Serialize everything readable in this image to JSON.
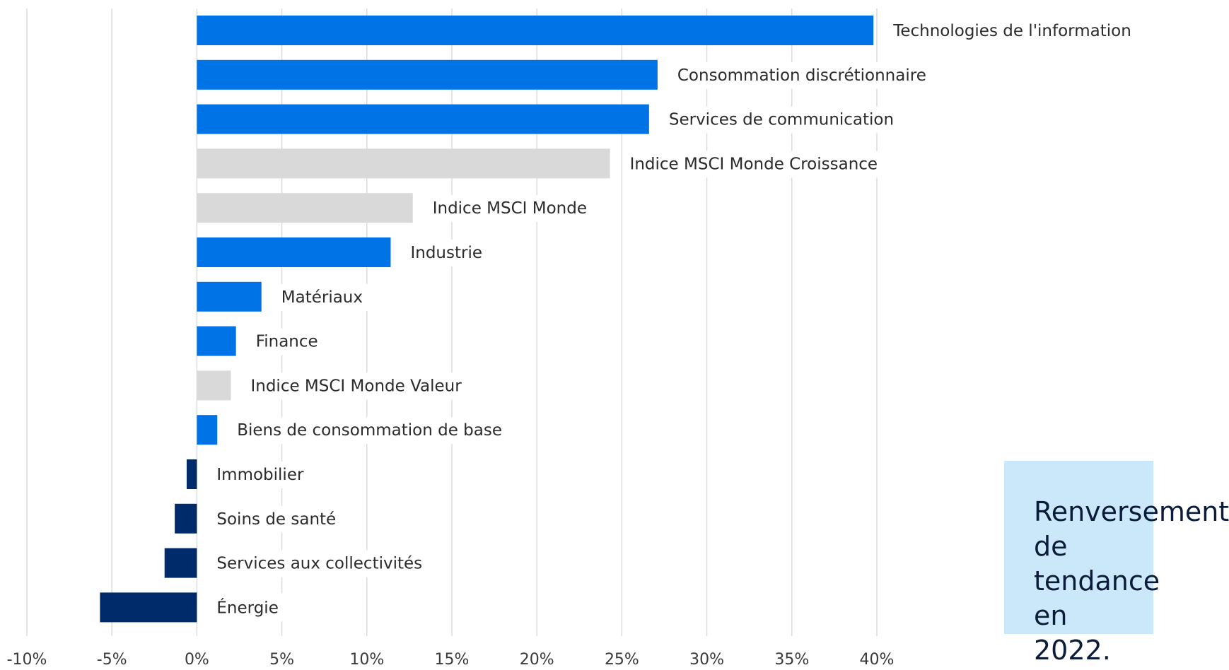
{
  "chart_data": {
    "type": "bar",
    "orientation": "horizontal",
    "categories": [
      "Technologies de l'information",
      "Consommation discrétionnaire",
      "Services de communication",
      "Indice MSCI Monde Croissance",
      "Indice MSCI Monde",
      "Industrie",
      "Matériaux",
      "Finance",
      "Indice MSCI Monde Valeur",
      "Biens de consommation de base",
      "Immobilier",
      "Soins de santé",
      "Services aux collectivités",
      "Énergie"
    ],
    "values": [
      39.8,
      27.1,
      26.6,
      24.3,
      12.7,
      11.4,
      3.8,
      2.3,
      2.0,
      1.2,
      -0.6,
      -1.3,
      -1.9,
      -5.7
    ],
    "bar_colors": [
      "#0073e6",
      "#0073e6",
      "#0073e6",
      "#d9d9d9",
      "#d9d9d9",
      "#0073e6",
      "#0073e6",
      "#0073e6",
      "#d9d9d9",
      "#0073e6",
      "#002b6b",
      "#002b6b",
      "#002b6b",
      "#002b6b"
    ],
    "xlim": [
      -10,
      40
    ],
    "xticks": [
      -10,
      -5,
      0,
      5,
      10,
      15,
      20,
      25,
      30,
      35,
      40
    ],
    "xtick_labels": [
      "-10%",
      "-5%",
      "0%",
      "5%",
      "10%",
      "15%",
      "20%",
      "25%",
      "30%",
      "35%",
      "40%"
    ],
    "title": "",
    "xlabel": "",
    "ylabel": "",
    "grid": "vertical",
    "legend": "none"
  },
  "colors": {
    "sector_positive": "#0073e6",
    "index": "#d9d9d9",
    "sector_negative": "#002b6b",
    "grid": "#d9d9d9",
    "callout_bg": "#cbe8fb"
  },
  "callout": {
    "text": "Renversement de\ntendance en\n2022."
  }
}
